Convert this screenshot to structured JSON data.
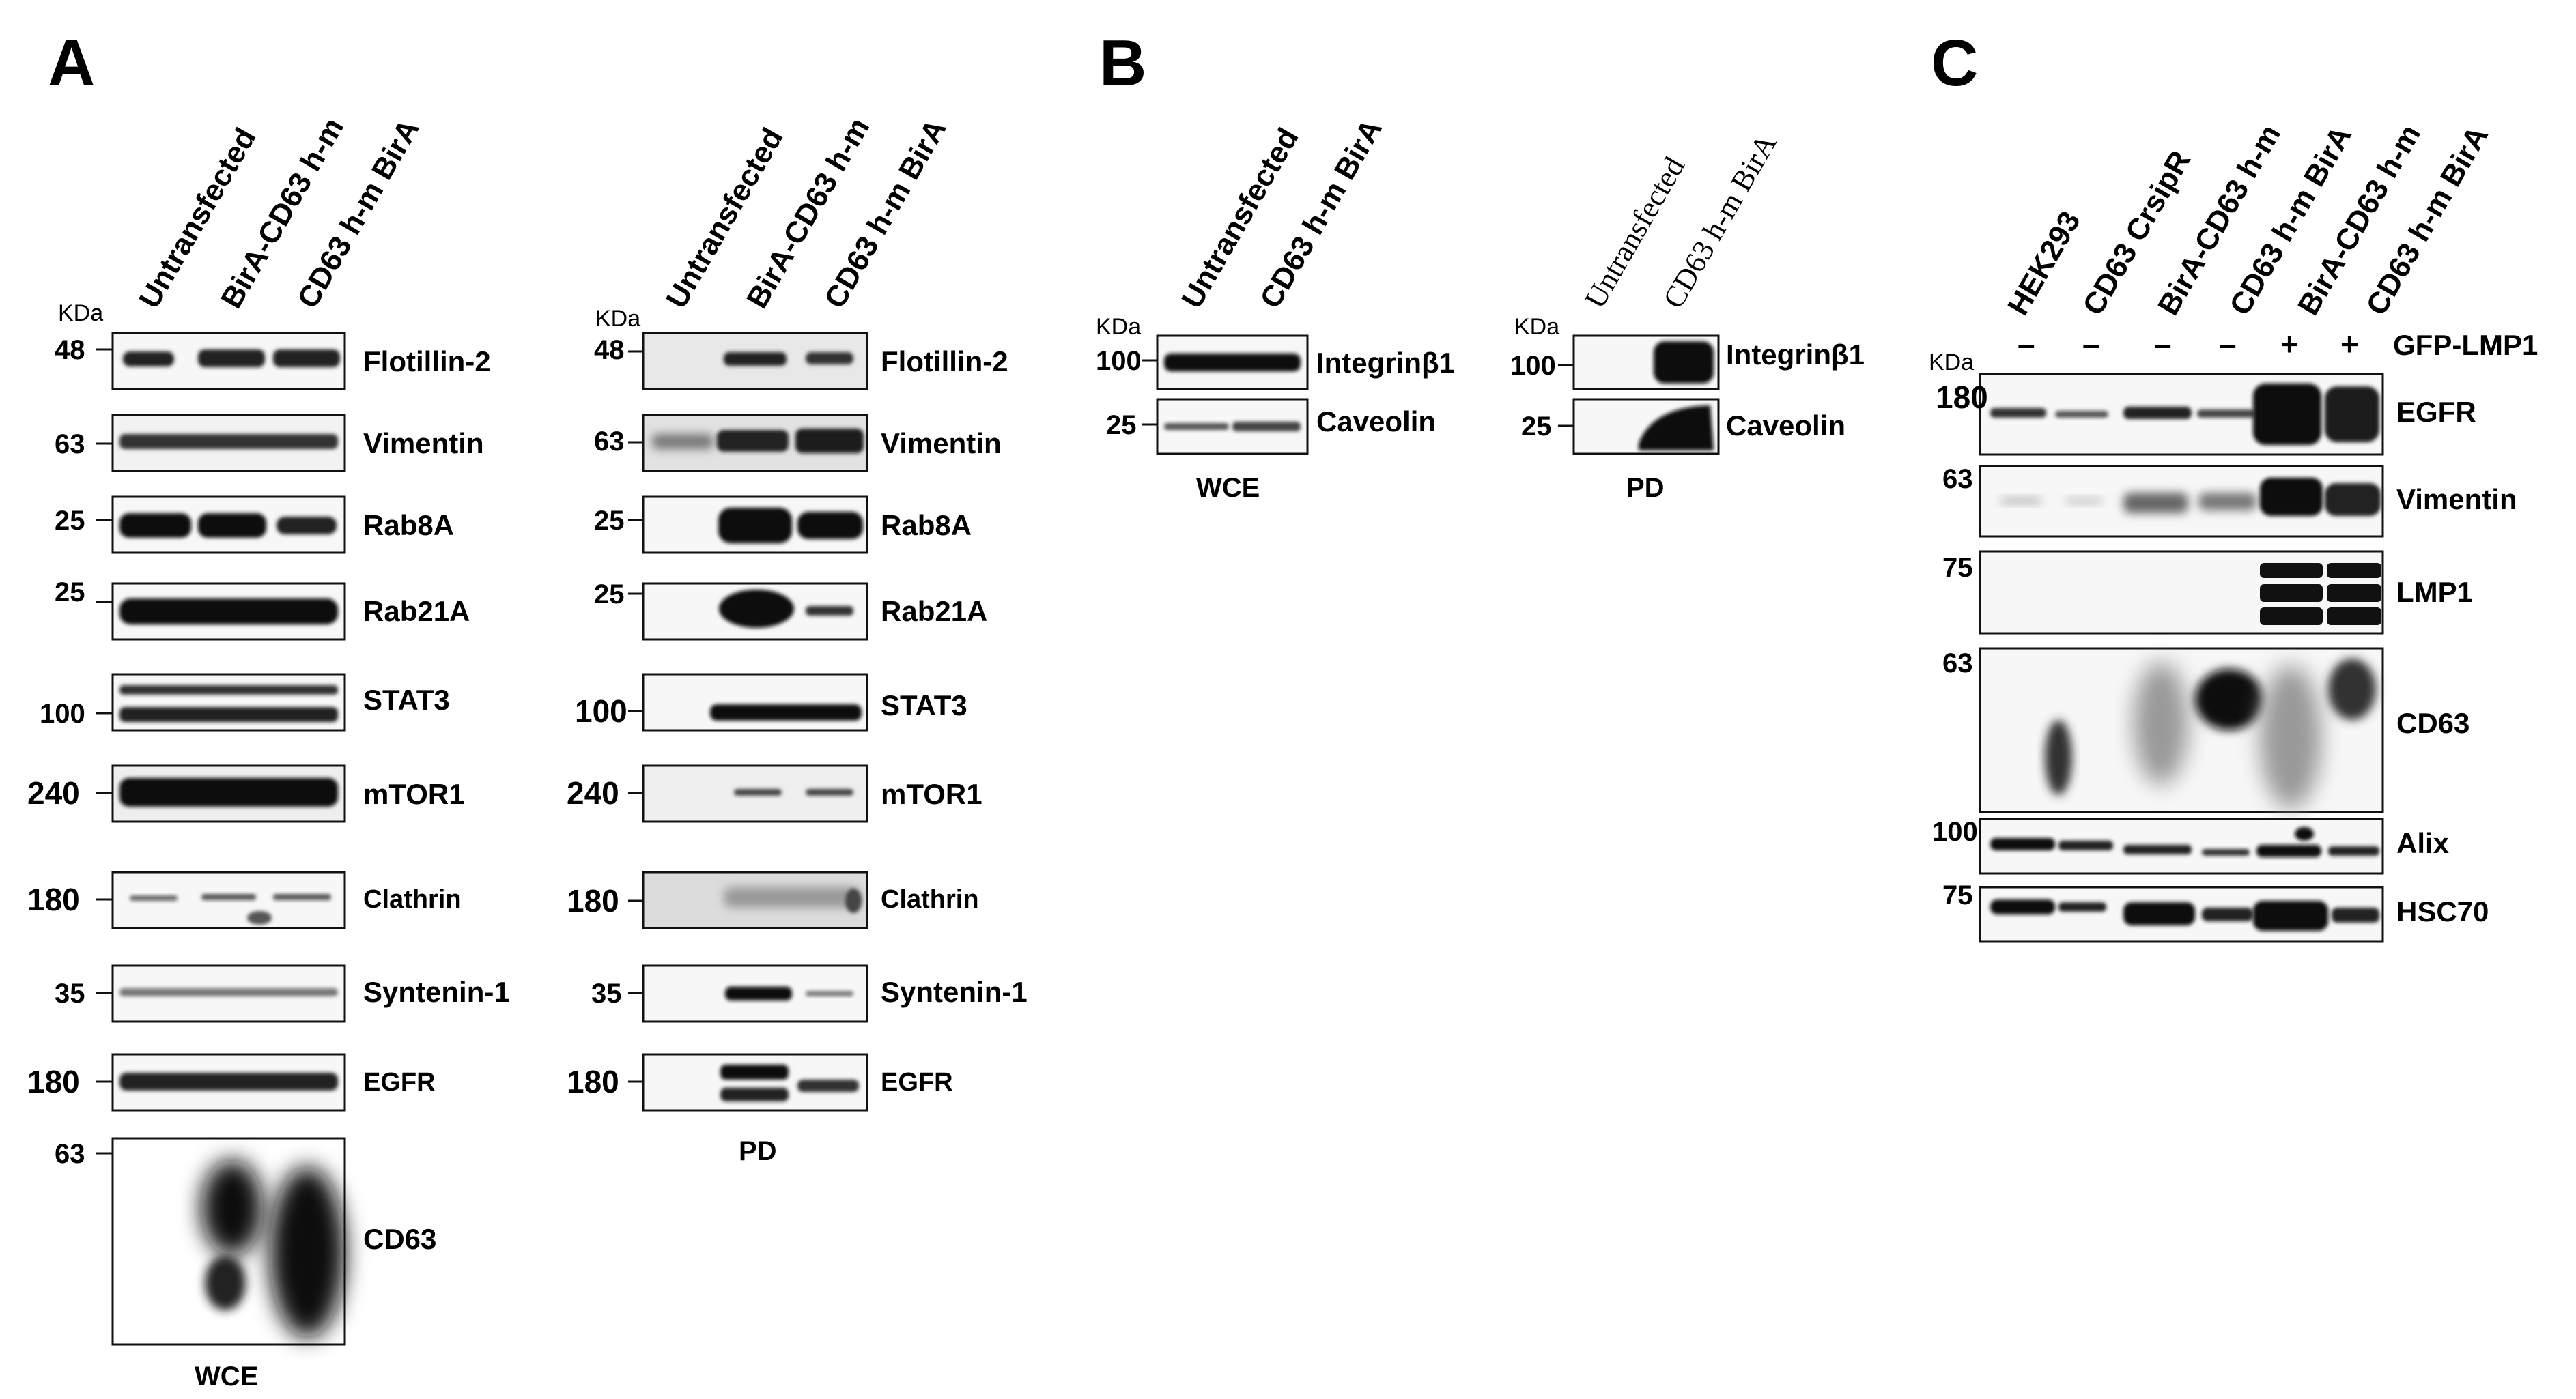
{
  "panels": {
    "A": {
      "letter": "A",
      "kda": "KDa",
      "lanes": [
        "Untransfected",
        "BirA-CD63 h-m",
        "CD63 h-m BirA"
      ],
      "blots": [
        {
          "protein": "Flotillin-2",
          "mw_wce": "48",
          "mw_pd": "48"
        },
        {
          "protein": "Vimentin",
          "mw_wce": "63",
          "mw_pd": "63"
        },
        {
          "protein": "Rab8A",
          "mw_wce": "25",
          "mw_pd": "25"
        },
        {
          "protein": "Rab21A",
          "mw_wce": "25",
          "mw_pd": "25"
        },
        {
          "protein": "STAT3",
          "mw_wce": "100",
          "mw_pd": "100"
        },
        {
          "protein": "mTOR1",
          "mw_wce": "240",
          "mw_pd": "240"
        },
        {
          "protein": "Clathrin",
          "mw_wce": "180",
          "mw_pd": "180"
        },
        {
          "protein": "Syntenin-1",
          "mw_wce": "35",
          "mw_pd": "35"
        },
        {
          "protein": "EGFR",
          "mw_wce": "180",
          "mw_pd": "180"
        },
        {
          "protein": "CD63",
          "mw_wce": "63",
          "mw_pd": ""
        }
      ],
      "footer_wce": "WCE",
      "footer_pd": "PD"
    },
    "B": {
      "letter": "B",
      "kda": "KDa",
      "lanes": [
        "Untransfected",
        "CD63 h-m BirA"
      ],
      "blots": [
        {
          "protein": "Integrinβ1",
          "mw": "100"
        },
        {
          "protein": "Caveolin",
          "mw": "25"
        }
      ],
      "footer_wce": "WCE",
      "footer_pd": "PD"
    },
    "C": {
      "letter": "C",
      "kda": "KDa",
      "lanes": [
        "HEK293",
        "CD63 CrsipR",
        "BirA-CD63 h-m",
        "CD63 h-m BirA",
        "BirA-CD63 h-m",
        "CD63 h-m BirA"
      ],
      "gfp_signs": [
        "–",
        "–",
        "–",
        "–",
        "+",
        "+"
      ],
      "gfp_label": "GFP-LMP1",
      "blots": [
        {
          "protein": "EGFR",
          "mw": "180"
        },
        {
          "protein": "Vimentin",
          "mw": "63"
        },
        {
          "protein": "LMP1",
          "mw": "75"
        },
        {
          "protein": "CD63",
          "mw": "63"
        },
        {
          "protein": "Alix",
          "mw": "100"
        },
        {
          "protein": "HSC70",
          "mw": "75"
        }
      ]
    }
  }
}
